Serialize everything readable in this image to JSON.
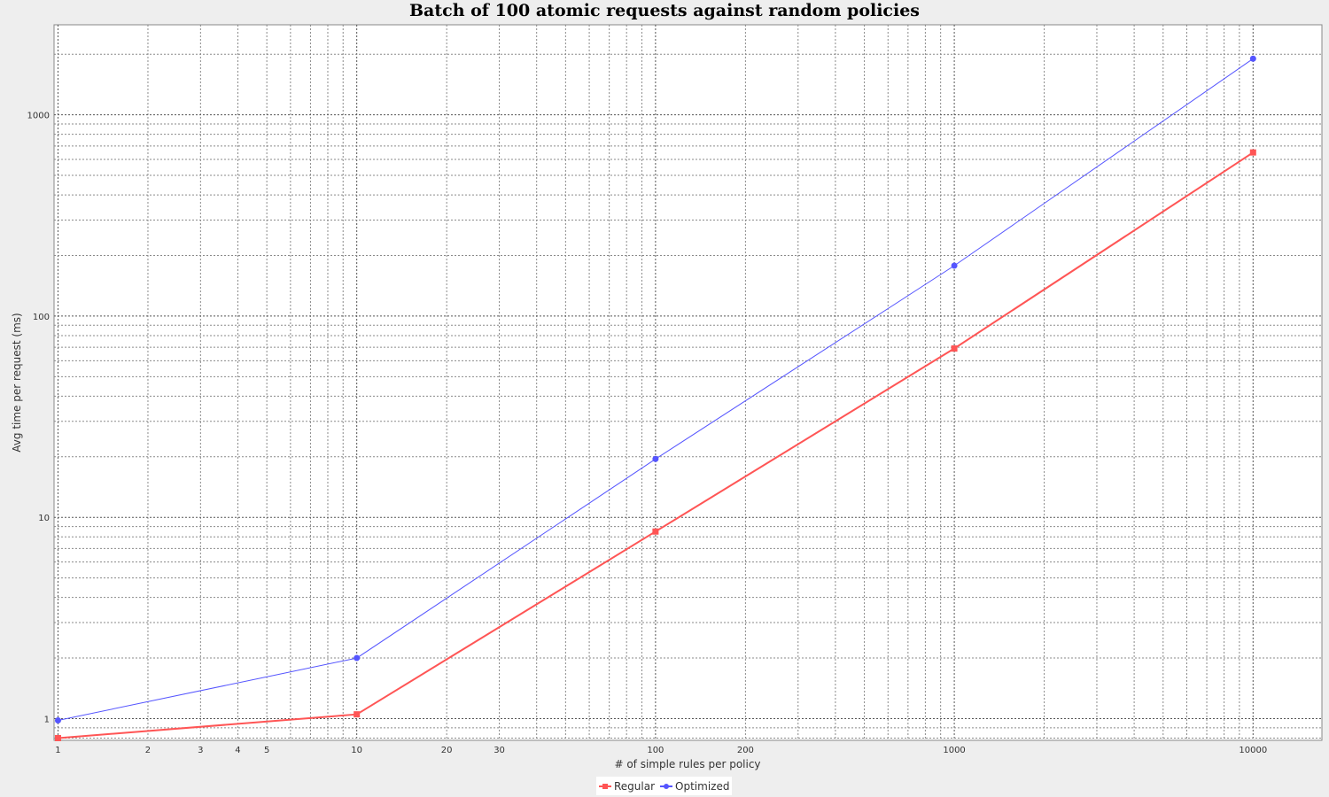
{
  "chart_data": {
    "type": "line",
    "title": "Batch of 100 atomic requests against random policies",
    "xlabel": "# of simple rules per policy",
    "ylabel": "Avg time per request (ms)",
    "x_scale": "log",
    "y_scale": "log",
    "xlim": [
      0.97,
      17000
    ],
    "ylim": [
      0.78,
      2800
    ],
    "x": [
      1,
      10,
      100,
      1000,
      10000
    ],
    "x_tick_labels": [
      "1",
      "2",
      "3",
      "4",
      "5",
      "10",
      "20",
      "30",
      "100",
      "200",
      "1000",
      "10000"
    ],
    "y_tick_labels": [
      "1",
      "10",
      "100",
      "1000"
    ],
    "grid": true,
    "legend_position": "bottom-center",
    "series": [
      {
        "name": "Regular",
        "color": "#ff5555",
        "marker": "square",
        "values": [
          0.8,
          1.05,
          8.5,
          69,
          650
        ]
      },
      {
        "name": "Optimized",
        "color": "#5555ff",
        "marker": "circle",
        "values": [
          0.98,
          2.0,
          19.5,
          178,
          1900
        ]
      }
    ]
  }
}
